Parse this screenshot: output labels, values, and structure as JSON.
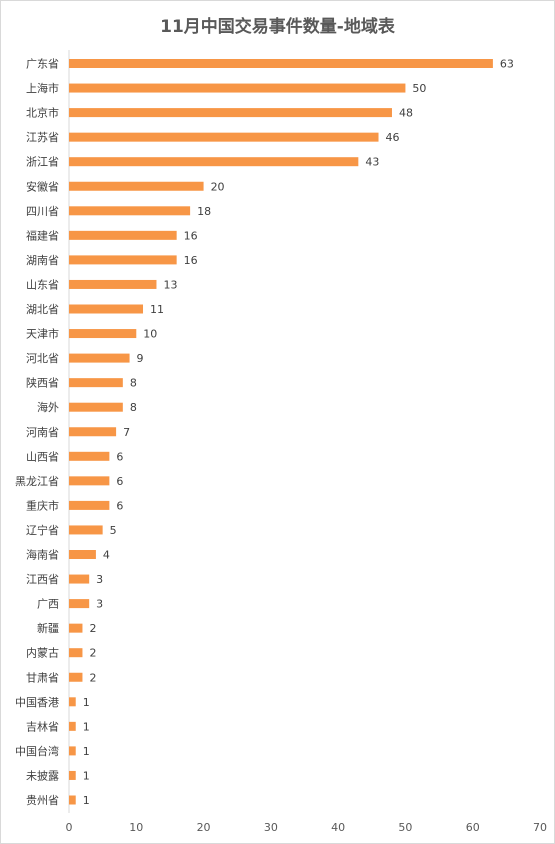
{
  "chart_data": {
    "type": "bar",
    "orientation": "horizontal",
    "title": "11月中国交易事件数量-地域表",
    "categories": [
      "广东省",
      "上海市",
      "北京市",
      "江苏省",
      "浙江省",
      "安徽省",
      "四川省",
      "福建省",
      "湖南省",
      "山东省",
      "湖北省",
      "天津市",
      "河北省",
      "陕西省",
      "海外",
      "河南省",
      "山西省",
      "黑龙江省",
      "重庆市",
      "辽宁省",
      "海南省",
      "江西省",
      "广西",
      "新疆",
      "内蒙古",
      "甘肃省",
      "中国香港",
      "吉林省",
      "中国台湾",
      "未披露",
      "贵州省"
    ],
    "values": [
      63,
      50,
      48,
      46,
      43,
      20,
      18,
      16,
      16,
      13,
      11,
      10,
      9,
      8,
      8,
      7,
      6,
      6,
      6,
      5,
      4,
      3,
      3,
      2,
      2,
      2,
      1,
      1,
      1,
      1,
      1
    ],
    "xlim": [
      0,
      70
    ],
    "xticks": [
      0,
      10,
      20,
      30,
      40,
      50,
      60,
      70
    ],
    "bar_color": "#F79646",
    "grid": false,
    "legend": "none"
  }
}
